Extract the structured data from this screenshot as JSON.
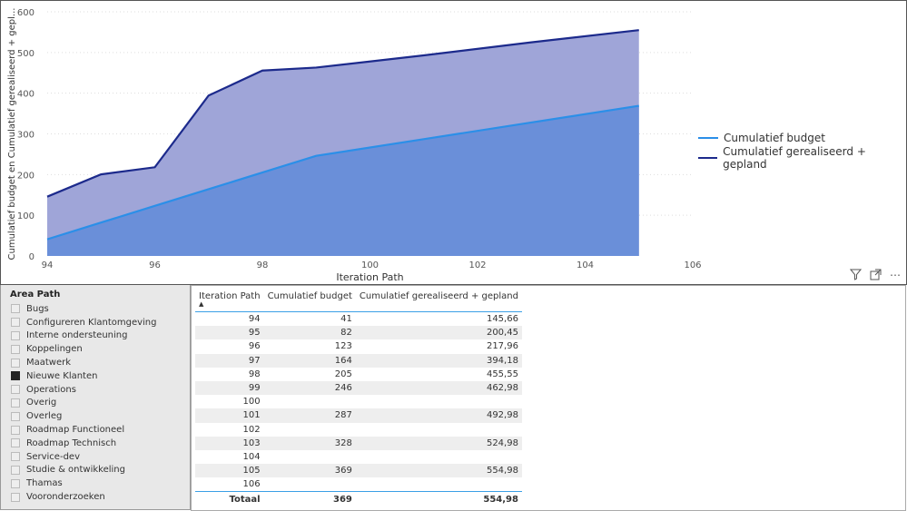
{
  "chart_data": {
    "type": "area",
    "xlabel": "Iteration Path",
    "ylabel": "Cumulatief budget en Cumulatief gerealiseerd + gepl...",
    "xlim": [
      94,
      106
    ],
    "ylim": [
      0,
      600
    ],
    "xticks": [
      "94",
      "96",
      "98",
      "100",
      "102",
      "104",
      "106"
    ],
    "yticks": [
      "0",
      "100",
      "200",
      "300",
      "400",
      "500",
      "600"
    ],
    "legend_position": "right",
    "series": [
      {
        "name": "Cumulatief budget",
        "color": "#2b8fe8",
        "fill": "#6a8fd9",
        "x": [
          94,
          95,
          96,
          97,
          98,
          99,
          101,
          103,
          105
        ],
        "values": [
          41,
          82,
          123,
          164,
          205,
          246,
          287,
          328,
          369
        ]
      },
      {
        "name": "Cumulatief gerealiseerd + gepland",
        "color": "#1c2a8c",
        "fill": "#9fa5d8",
        "x": [
          94,
          95,
          96,
          97,
          98,
          99,
          101,
          103,
          105
        ],
        "values": [
          145.66,
          200.45,
          217.96,
          394.18,
          455.55,
          462.98,
          492.98,
          524.98,
          554.98
        ]
      }
    ]
  },
  "slicer": {
    "title": "Area Path",
    "items": [
      {
        "label": "Bugs",
        "checked": false
      },
      {
        "label": "Configureren Klantomgeving",
        "checked": false
      },
      {
        "label": "Interne ondersteuning",
        "checked": false
      },
      {
        "label": "Koppelingen",
        "checked": false
      },
      {
        "label": "Maatwerk",
        "checked": false
      },
      {
        "label": "Nieuwe Klanten",
        "checked": true
      },
      {
        "label": "Operations",
        "checked": false
      },
      {
        "label": "Overig",
        "checked": false
      },
      {
        "label": "Overleg",
        "checked": false
      },
      {
        "label": "Roadmap Functioneel",
        "checked": false
      },
      {
        "label": "Roadmap Technisch",
        "checked": false
      },
      {
        "label": "Service-dev",
        "checked": false
      },
      {
        "label": "Studie & ontwikkeling",
        "checked": false
      },
      {
        "label": "Thamas",
        "checked": false
      },
      {
        "label": "Vooronderzoeken",
        "checked": false
      }
    ]
  },
  "table": {
    "headers": [
      "Iteration Path",
      "Cumulatief budget",
      "Cumulatief gerealiseerd + gepland"
    ],
    "rows": [
      [
        "94",
        "41",
        "145,66"
      ],
      [
        "95",
        "82",
        "200,45"
      ],
      [
        "96",
        "123",
        "217,96"
      ],
      [
        "97",
        "164",
        "394,18"
      ],
      [
        "98",
        "205",
        "455,55"
      ],
      [
        "99",
        "246",
        "462,98"
      ],
      [
        "100",
        "",
        ""
      ],
      [
        "101",
        "287",
        "492,98"
      ],
      [
        "102",
        "",
        ""
      ],
      [
        "103",
        "328",
        "524,98"
      ],
      [
        "104",
        "",
        ""
      ],
      [
        "105",
        "369",
        "554,98"
      ],
      [
        "106",
        "",
        ""
      ]
    ],
    "total": [
      "Totaal",
      "369",
      "554,98"
    ]
  },
  "icons": {
    "filter": "filter-icon",
    "focus": "focus-mode-icon",
    "more": "more-options-icon"
  }
}
